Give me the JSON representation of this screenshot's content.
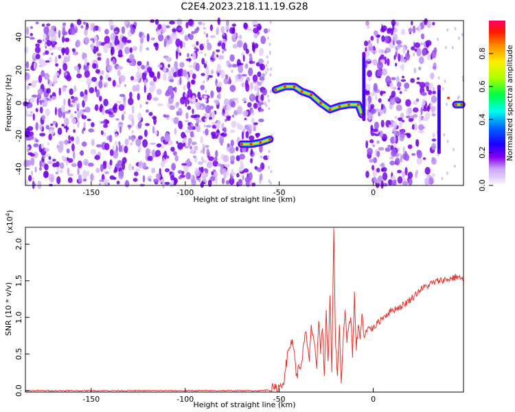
{
  "title": "C2E4.2023.218.11.19.G28",
  "chart_data": [
    {
      "type": "heatmap",
      "xlabel": "Height of straight line (km)",
      "ylabel": "Frequency (Hz)",
      "xlim": [
        -185,
        48
      ],
      "ylim": [
        -50,
        50
      ],
      "x_ticks": [
        -150,
        -100,
        -50,
        0
      ],
      "y_ticks": [
        -40,
        -20,
        0,
        20,
        40
      ],
      "colorbar": {
        "label": "Normalized spectral amplitude",
        "range": [
          0,
          1
        ],
        "ticks": [
          0.0,
          0.2,
          0.4,
          0.6,
          0.8
        ],
        "colors": [
          "#ffffff",
          "#c9a6f5",
          "#7a00f0",
          "#0000ff",
          "#00ccff",
          "#00ff66",
          "#ccff00",
          "#ffcc00",
          "#ff3300",
          "#ff0066"
        ]
      },
      "ridge": [
        {
          "x": -70,
          "y": -25
        },
        {
          "x": -65,
          "y": -25
        },
        {
          "x": -60,
          "y": -24
        },
        {
          "x": -55,
          "y": -22
        },
        {
          "x": -52,
          "y": 8
        },
        {
          "x": -47,
          "y": 10
        },
        {
          "x": -42,
          "y": 10
        },
        {
          "x": -38,
          "y": 7
        },
        {
          "x": -33,
          "y": 5
        },
        {
          "x": -28,
          "y": 0
        },
        {
          "x": -23,
          "y": -4
        },
        {
          "x": -18,
          "y": -2
        },
        {
          "x": -13,
          "y": -1
        },
        {
          "x": -8,
          "y": -1
        },
        {
          "x": -6,
          "y": -7
        },
        {
          "x": 40,
          "y": 3
        },
        {
          "x": 44,
          "y": -1
        },
        {
          "x": 47,
          "y": -1
        }
      ],
      "vertical_streaks": [
        {
          "x": -5,
          "y": [
            -10,
            30
          ]
        },
        {
          "x": 35,
          "y": [
            -30,
            10
          ]
        }
      ]
    },
    {
      "type": "line",
      "xlabel": "Height of straight line (km)",
      "ylabel": "SNR (10 * v/v)",
      "y_multiplier": "(x10",
      "y_multiplier_exp": "4",
      "y_multiplier_close": ")",
      "xlim": [
        -185,
        48
      ],
      "ylim": [
        -0.02,
        2.23
      ],
      "x_ticks": [
        -150,
        -100,
        -50,
        0
      ],
      "y_ticks": [
        0.0,
        0.5,
        1.0,
        1.5,
        2.0
      ],
      "color": "#e8302a",
      "x": [
        -185,
        -60,
        -52,
        -50,
        -48,
        -47,
        -45,
        -43,
        -42,
        -41,
        -38,
        -36,
        -34,
        -33,
        -31,
        -30,
        -29,
        -28,
        -27,
        -26,
        -25,
        -24,
        -23,
        -22,
        -21,
        -20,
        -19,
        -18,
        -17,
        -16,
        -15,
        -14,
        -13,
        -12,
        -11,
        -10,
        -9,
        -8,
        -7,
        -6,
        -5,
        -3,
        0,
        5,
        10,
        15,
        20,
        25,
        30,
        35,
        40,
        45,
        48
      ],
      "y": [
        0.0,
        0.0,
        0.02,
        0.05,
        0.1,
        0.25,
        0.55,
        0.7,
        0.55,
        0.2,
        0.4,
        0.8,
        0.4,
        0.9,
        0.6,
        0.3,
        0.95,
        0.5,
        0.85,
        0.2,
        1.1,
        0.4,
        1.3,
        0.25,
        2.22,
        0.6,
        0.2,
        0.9,
        0.1,
        0.7,
        1.1,
        0.65,
        0.9,
        1.0,
        0.45,
        1.35,
        0.55,
        0.9,
        0.7,
        1.05,
        0.75,
        0.85,
        0.85,
        1.0,
        1.1,
        1.15,
        1.25,
        1.38,
        1.45,
        1.5,
        1.52,
        1.56,
        1.5
      ]
    }
  ]
}
